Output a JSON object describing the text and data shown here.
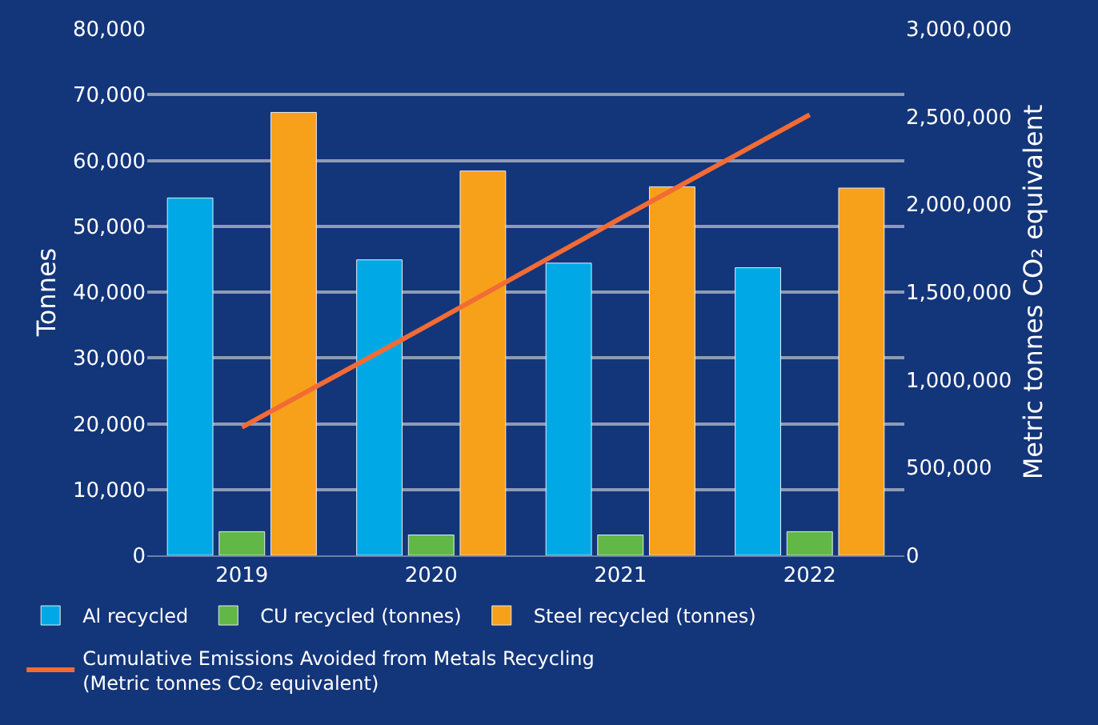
{
  "chart_data": {
    "type": "bar",
    "categories": [
      "2019",
      "2020",
      "2021",
      "2022"
    ],
    "ylabel": "Tonnes",
    "y2label": "Metric tonnes CO₂ equivalent",
    "series": [
      {
        "name": "Al recycled",
        "color": "#00a9e6",
        "values": [
          54300,
          44900,
          44400,
          43700
        ]
      },
      {
        "name": "CU recycled (tonnes)",
        "color": "#62b846",
        "values": [
          3600,
          3100,
          3100,
          3600
        ]
      },
      {
        "name": "Steel recycled (tonnes)",
        "color": "#f7a11a",
        "values": [
          67300,
          58400,
          56000,
          55800
        ]
      },
      {
        "name": "Cumulative Emissions Avoided from Metals Recycling\n(Metric tonnes CO₂ equivalent)",
        "type": "line",
        "axis": "y2",
        "color": "#f26b35",
        "values": [
          730000,
          1320000,
          1920000,
          2510000
        ]
      }
    ],
    "ylim": [
      0,
      80000
    ],
    "yticks": [
      {
        "value": 0,
        "label": "0"
      },
      {
        "value": 10000,
        "label": "10,000"
      },
      {
        "value": 20000,
        "label": "20,000"
      },
      {
        "value": 30000,
        "label": "30,000"
      },
      {
        "value": 40000,
        "label": "40,000"
      },
      {
        "value": 50000,
        "label": "50,000"
      },
      {
        "value": 60000,
        "label": "60,000"
      },
      {
        "value": 70000,
        "label": "70,000"
      },
      {
        "value": 80000,
        "label": "80,000"
      }
    ],
    "y2lim": [
      0,
      3000000
    ],
    "y2ticks": [
      {
        "value": 0,
        "label": "0"
      },
      {
        "value": 500000,
        "label": "500,000"
      },
      {
        "value": 1000000,
        "label": "1,000,000"
      },
      {
        "value": 1500000,
        "label": "1,500,000"
      },
      {
        "value": 2000000,
        "label": "2,000,000"
      },
      {
        "value": 2500000,
        "label": "2,500,000"
      },
      {
        "value": 3000000,
        "label": "3,000,000"
      }
    ],
    "grid": "y",
    "legend": "bottom",
    "marker": "none",
    "line_style": "solid"
  }
}
